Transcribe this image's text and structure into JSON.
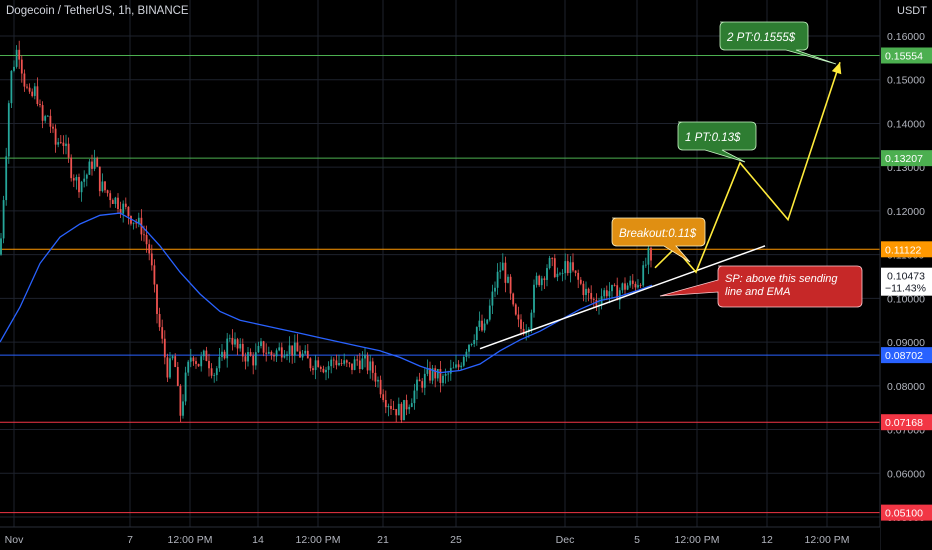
{
  "header": {
    "title": "Dogecoin / TetherUS, 1h, BINANCE"
  },
  "chart_data": {
    "type": "candlestick",
    "title": "Dogecoin / TetherUS, 1h, BINANCE",
    "y_axis_unit": "USDT",
    "ylim": [
      0.045,
      0.166
    ],
    "y_ticks": [
      "0.16000",
      "0.15000",
      "0.14000",
      "0.13000",
      "0.12000",
      "0.11000",
      "0.10000",
      "0.09000",
      "0.08000",
      "0.07000",
      "0.06000",
      "0.05000"
    ],
    "x_ticks": [
      "Nov",
      "7",
      "12:00 PM",
      "14",
      "12:00 PM",
      "21",
      "25",
      "Dec",
      "5",
      "12:00 PM",
      "12",
      "12:00 PM"
    ],
    "price_path": [
      [
        0,
        0.11
      ],
      [
        4,
        0.125
      ],
      [
        10,
        0.15
      ],
      [
        18,
        0.158
      ],
      [
        24,
        0.15
      ],
      [
        30,
        0.145
      ],
      [
        36,
        0.148
      ],
      [
        42,
        0.14
      ],
      [
        48,
        0.142
      ],
      [
        55,
        0.135
      ],
      [
        62,
        0.137
      ],
      [
        70,
        0.13
      ],
      [
        78,
        0.126
      ],
      [
        86,
        0.128
      ],
      [
        94,
        0.132
      ],
      [
        100,
        0.126
      ],
      [
        108,
        0.124
      ],
      [
        118,
        0.122
      ],
      [
        126,
        0.12
      ],
      [
        134,
        0.118
      ],
      [
        142,
        0.116
      ],
      [
        150,
        0.11
      ],
      [
        156,
        0.098
      ],
      [
        162,
        0.09
      ],
      [
        168,
        0.083
      ],
      [
        174,
        0.087
      ],
      [
        180,
        0.073
      ],
      [
        186,
        0.082
      ],
      [
        192,
        0.088
      ],
      [
        198,
        0.085
      ],
      [
        206,
        0.087
      ],
      [
        214,
        0.083
      ],
      [
        222,
        0.086
      ],
      [
        230,
        0.092
      ],
      [
        238,
        0.088
      ],
      [
        246,
        0.087
      ],
      [
        254,
        0.086
      ],
      [
        262,
        0.089
      ],
      [
        270,
        0.087
      ],
      [
        278,
        0.088
      ],
      [
        286,
        0.089
      ],
      [
        294,
        0.088
      ],
      [
        302,
        0.087
      ],
      [
        310,
        0.085
      ],
      [
        318,
        0.086
      ],
      [
        326,
        0.084
      ],
      [
        334,
        0.086
      ],
      [
        342,
        0.085
      ],
      [
        350,
        0.084
      ],
      [
        358,
        0.086
      ],
      [
        366,
        0.085
      ],
      [
        374,
        0.083
      ],
      [
        380,
        0.08
      ],
      [
        386,
        0.077
      ],
      [
        394,
        0.075
      ],
      [
        402,
        0.074
      ],
      [
        410,
        0.077
      ],
      [
        418,
        0.08
      ],
      [
        426,
        0.082
      ],
      [
        434,
        0.083
      ],
      [
        442,
        0.081
      ],
      [
        450,
        0.083
      ],
      [
        458,
        0.084
      ],
      [
        466,
        0.089
      ],
      [
        472,
        0.091
      ],
      [
        478,
        0.094
      ],
      [
        484,
        0.092
      ],
      [
        490,
        0.098
      ],
      [
        496,
        0.104
      ],
      [
        502,
        0.108
      ],
      [
        508,
        0.103
      ],
      [
        514,
        0.096
      ],
      [
        520,
        0.093
      ],
      [
        528,
        0.094
      ],
      [
        536,
        0.104
      ],
      [
        542,
        0.105
      ],
      [
        548,
        0.108
      ],
      [
        554,
        0.107
      ],
      [
        560,
        0.104
      ],
      [
        566,
        0.108
      ],
      [
        572,
        0.106
      ],
      [
        578,
        0.104
      ],
      [
        584,
        0.102
      ],
      [
        590,
        0.1
      ],
      [
        596,
        0.099
      ],
      [
        602,
        0.101
      ],
      [
        608,
        0.102
      ],
      [
        614,
        0.101
      ],
      [
        620,
        0.102
      ],
      [
        626,
        0.103
      ],
      [
        632,
        0.103
      ],
      [
        638,
        0.104
      ],
      [
        644,
        0.106
      ],
      [
        648,
        0.11
      ],
      [
        652,
        0.106
      ]
    ],
    "ema_path": [
      [
        0,
        0.09
      ],
      [
        20,
        0.098
      ],
      [
        40,
        0.108
      ],
      [
        60,
        0.114
      ],
      [
        80,
        0.117
      ],
      [
        100,
        0.119
      ],
      [
        120,
        0.1195
      ],
      [
        140,
        0.117
      ],
      [
        160,
        0.112
      ],
      [
        180,
        0.106
      ],
      [
        200,
        0.101
      ],
      [
        220,
        0.097
      ],
      [
        240,
        0.095
      ],
      [
        260,
        0.094
      ],
      [
        280,
        0.093
      ],
      [
        300,
        0.092
      ],
      [
        320,
        0.091
      ],
      [
        340,
        0.09
      ],
      [
        360,
        0.089
      ],
      [
        380,
        0.088
      ],
      [
        400,
        0.0865
      ],
      [
        420,
        0.0845
      ],
      [
        440,
        0.083
      ],
      [
        460,
        0.0835
      ],
      [
        480,
        0.085
      ],
      [
        500,
        0.088
      ],
      [
        520,
        0.0905
      ],
      [
        540,
        0.0925
      ],
      [
        560,
        0.095
      ],
      [
        580,
        0.0975
      ],
      [
        600,
        0.0995
      ],
      [
        620,
        0.1005
      ],
      [
        640,
        0.102
      ],
      [
        652,
        0.103
      ]
    ],
    "horizontal_levels": [
      {
        "value": 0.15554,
        "label": "0.15554",
        "color": "#4caf50"
      },
      {
        "value": 0.13207,
        "label": "0.13207",
        "color": "#4caf50"
      },
      {
        "value": 0.11122,
        "label": "0.11122",
        "color": "#ff9800"
      },
      {
        "value": 0.08702,
        "label": "0.08702",
        "color": "#2962ff"
      },
      {
        "value": 0.07168,
        "label": "0.07168",
        "color": "#f23645"
      },
      {
        "value": 0.051,
        "label": "0.05100",
        "color": "#f23645"
      }
    ],
    "last_price": {
      "value": 0.10473,
      "label": "0.10473",
      "change": "−11.43%"
    },
    "annotations": {
      "breakout": "Breakout:0.11$",
      "pt1": "1 PT:0.13$",
      "pt2": "2 PT:0.1555$",
      "sp": "SP: above this sending line and EMA"
    },
    "projection_path": [
      [
        0.107,
        655
      ],
      [
        0.1115,
        675
      ],
      [
        0.106,
        696
      ],
      [
        0.131,
        740
      ],
      [
        0.118,
        788
      ],
      [
        0.154,
        840
      ]
    ],
    "trend_line": [
      [
        0.0885,
        480
      ],
      [
        0.112,
        765
      ]
    ],
    "colors": {
      "up": "#26a69a",
      "down": "#ef5350",
      "ema": "#2962ff",
      "projection": "#ffeb3b",
      "trend": "#ffffff"
    }
  }
}
